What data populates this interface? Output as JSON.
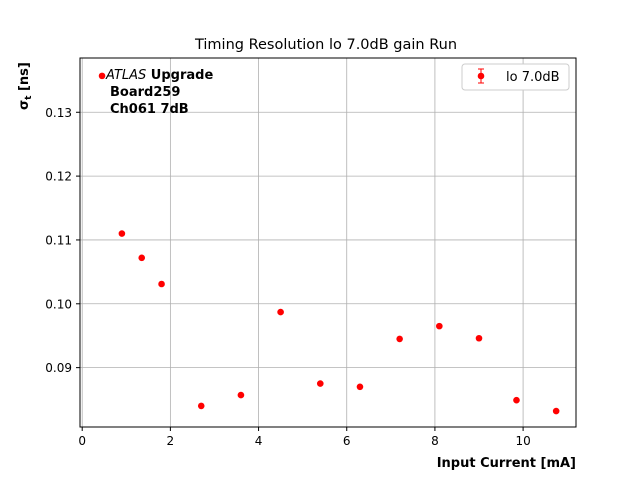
{
  "chart_data": {
    "type": "scatter",
    "title": "Timing Resolution lo 7.0dB gain Run",
    "xlabel": "Input Current [mA]",
    "ylabel_main": "σ",
    "ylabel_sub": "t",
    "ylabel_unit": " [ns]",
    "xlim": [
      -0.05,
      11.2
    ],
    "ylim": [
      0.0807,
      0.1385
    ],
    "xticks": [
      0,
      2,
      4,
      6,
      8,
      10
    ],
    "yticks": [
      0.09,
      0.1,
      0.11,
      0.12,
      0.13
    ],
    "ytick_labels": [
      "0.09",
      "0.10",
      "0.11",
      "0.12",
      "0.13"
    ],
    "grid": true,
    "legend_position": "top-right",
    "series": [
      {
        "name": "lo 7.0dB",
        "color": "#ff0000",
        "x": [
          0.45,
          0.9,
          1.35,
          1.8,
          2.7,
          3.6,
          4.5,
          5.4,
          6.3,
          7.2,
          8.1,
          9.0,
          9.85,
          10.75
        ],
        "y": [
          0.1357,
          0.111,
          0.1072,
          0.1031,
          0.084,
          0.0857,
          0.0987,
          0.0875,
          0.087,
          0.0945,
          0.0965,
          0.0946,
          0.0849,
          0.0832
        ]
      }
    ],
    "annotation": {
      "line1_italic": "ATLAS",
      "line1_bold": " Upgrade",
      "line2": "Board259",
      "line3": "Ch061 7dB"
    }
  }
}
